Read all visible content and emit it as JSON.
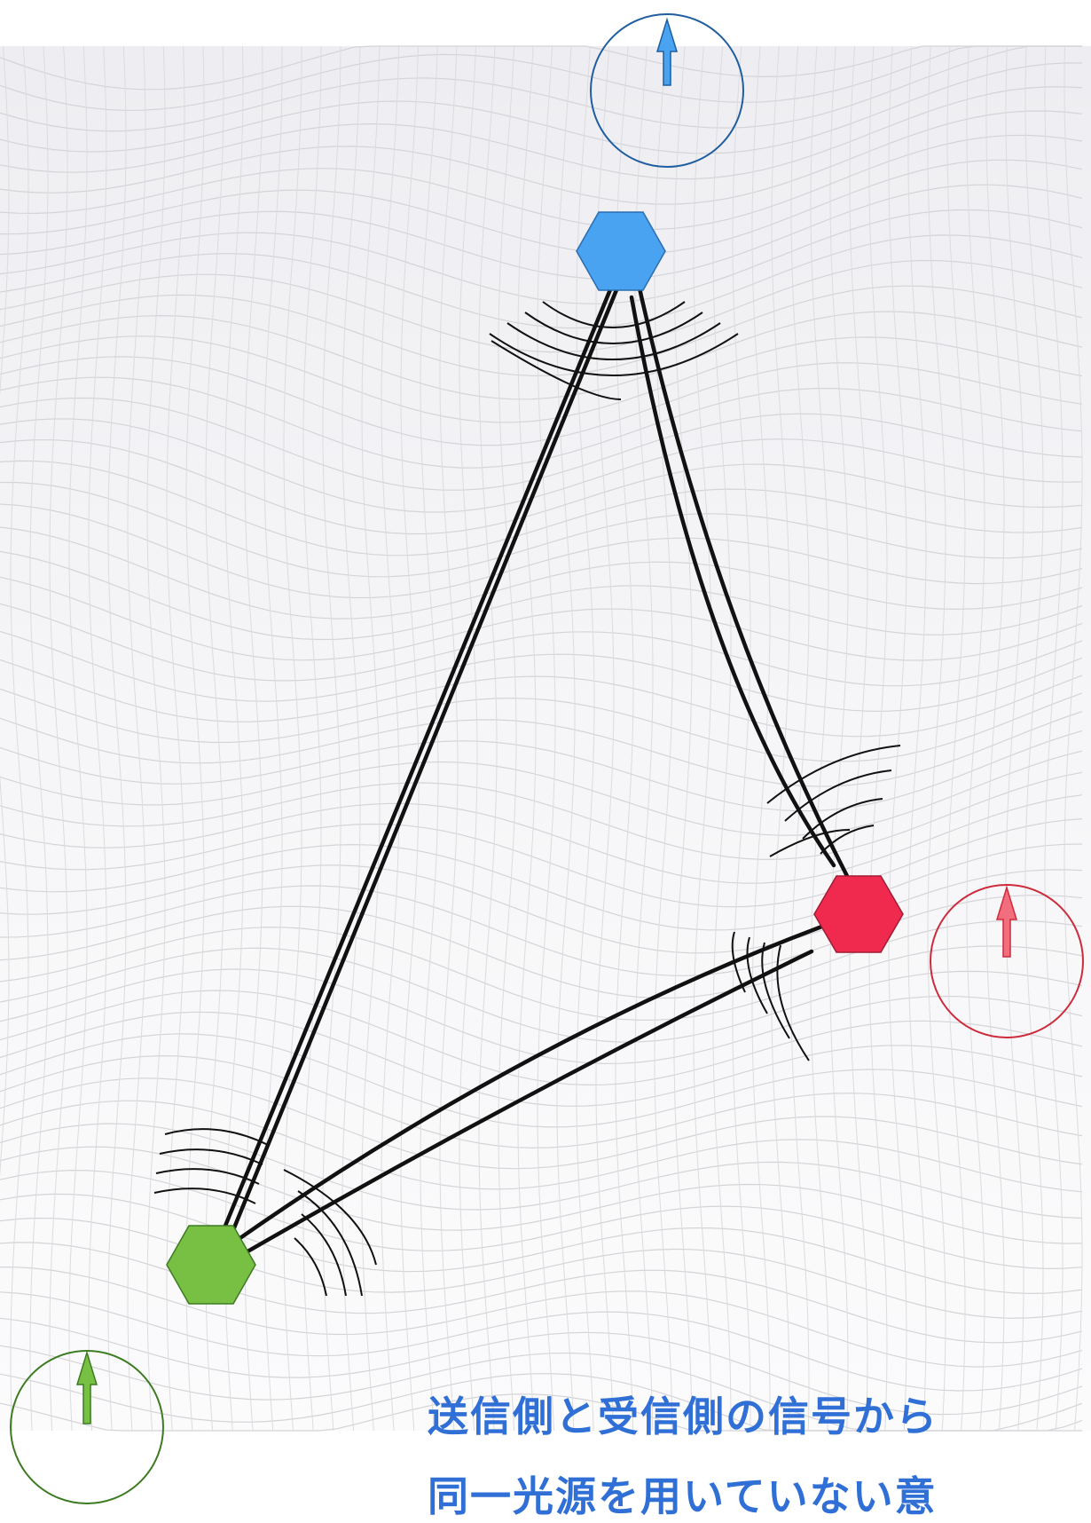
{
  "caption": {
    "line1": "送信側と受信側の信号から",
    "line2": "同一光源を用いていない意"
  },
  "colors": {
    "blue_node": "#4aa3f0",
    "blue_ring": "#1f5ea0",
    "red_node": "#f0294f",
    "red_ring": "#cc2b3a",
    "green_node": "#78c043",
    "green_ring": "#3d7a22",
    "caption": "#2f6fd6",
    "link": "#111111"
  },
  "nodes": [
    {
      "id": "blue",
      "label": ""
    },
    {
      "id": "red",
      "label": ""
    },
    {
      "id": "green",
      "label": ""
    }
  ]
}
